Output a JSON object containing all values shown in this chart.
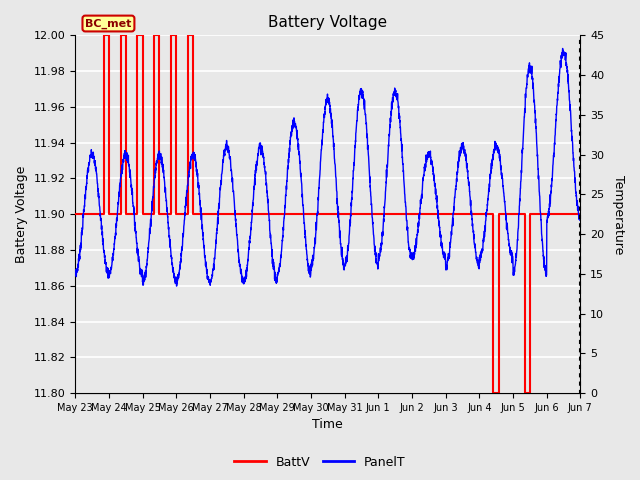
{
  "title": "Battery Voltage",
  "xlabel": "Time",
  "ylabel_left": "Battery Voltage",
  "ylabel_right": "Temperature",
  "ylim_left": [
    11.8,
    12.0
  ],
  "ylim_right": [
    0,
    45
  ],
  "yticks_left": [
    11.8,
    11.82,
    11.84,
    11.86,
    11.88,
    11.9,
    11.92,
    11.94,
    11.96,
    11.98,
    12.0
  ],
  "yticks_right": [
    0,
    5,
    10,
    15,
    20,
    25,
    30,
    35,
    40,
    45
  ],
  "xtick_labels": [
    "May 23",
    "May 24",
    "May 25",
    "May 26",
    "May 27",
    "May 28",
    "May 29",
    "May 30",
    "May 31",
    "Jun 1",
    "Jun 2",
    "Jun 3",
    "Jun 4",
    "Jun 5",
    "Jun 6",
    "Jun 7"
  ],
  "annotation_text": "BC_met",
  "battv_color": "#ff0000",
  "panelt_color": "#0000ff",
  "background_color": "#e8e8e8",
  "grid_color": "#ffffff",
  "battv_x": [
    0.0,
    0.85,
    0.85,
    1.0,
    1.0,
    1.35,
    1.35,
    1.5,
    1.5,
    1.85,
    1.85,
    2.0,
    2.0,
    2.35,
    2.35,
    2.5,
    2.5,
    2.85,
    2.85,
    3.0,
    3.0,
    3.35,
    3.35,
    3.5,
    3.5,
    12.4,
    12.4,
    12.6,
    12.6,
    13.35,
    13.35,
    13.5,
    13.5,
    15.0
  ],
  "battv_y": [
    11.9,
    11.9,
    12.0,
    12.0,
    11.9,
    11.9,
    12.0,
    12.0,
    11.9,
    11.9,
    12.0,
    12.0,
    11.9,
    11.9,
    12.0,
    12.0,
    11.9,
    11.9,
    12.0,
    12.0,
    11.9,
    11.9,
    12.0,
    12.0,
    11.9,
    11.9,
    11.8,
    11.8,
    11.9,
    11.9,
    11.8,
    11.8,
    11.9,
    11.9
  ],
  "figsize": [
    6.4,
    4.8
  ],
  "dpi": 100
}
